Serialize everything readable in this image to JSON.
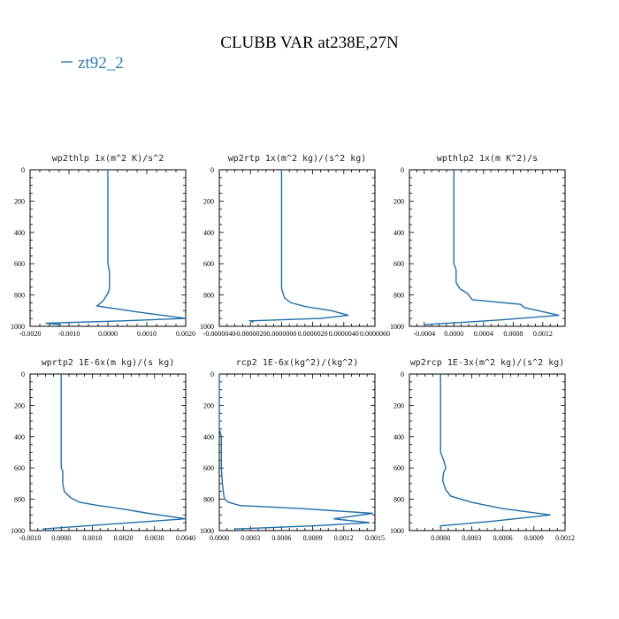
{
  "figure": {
    "title": "CLUBB VAR at238E,27N",
    "legend_label": "zt92_2",
    "colors": {
      "series": "#1f6fa8",
      "legend": "#2c7bb6"
    }
  },
  "chart_data": [
    {
      "type": "line",
      "title": "wp2thlp   1x(m^2 K)/s^2",
      "xlim": [
        -0.002,
        0.002
      ],
      "ylim": [
        1000,
        0
      ],
      "xticks": [
        -0.002,
        -0.001,
        0.0,
        0.001,
        0.002
      ],
      "xtick_labels": [
        "-0.0020",
        "-0.0010",
        "0.0000",
        "0.0010",
        "0.0020"
      ],
      "yticks": [
        0,
        200,
        400,
        600,
        800,
        1000
      ],
      "ytick_labels": [
        "0",
        "200",
        "400",
        "600",
        "800",
        "1000"
      ],
      "series": [
        {
          "name": "zt92_2",
          "x": [
            0.0,
            0.0,
            0.0,
            0.0,
            4e-05,
            4e-05,
            0.0,
            -0.00013,
            -0.00028,
            0.0008,
            0.002,
            0.0004,
            -0.0016,
            -0.0012
          ],
          "y": [
            0,
            200,
            400,
            600,
            650,
            760,
            790,
            840,
            870,
            910,
            950,
            965,
            980,
            990
          ]
        }
      ]
    },
    {
      "type": "line",
      "title": "wp2rtp   1x(m^2 kg)/(s^2 kg)",
      "xlim": [
        -4e-06,
        6e-06
      ],
      "ylim": [
        1000,
        0
      ],
      "xticks": [
        -4e-06,
        -2e-06,
        0.0,
        2e-06,
        4e-06,
        6e-06
      ],
      "xtick_labels": [
        "-0.0000040",
        "-0.0000020",
        "0.0000000",
        "0.0000020",
        "0.0000040",
        "0.0000060"
      ],
      "yticks": [
        0,
        200,
        400,
        600,
        800,
        1000
      ],
      "ytick_labels": [
        "0",
        "200",
        "400",
        "600",
        "800",
        "1000"
      ],
      "series": [
        {
          "name": "zt92_2",
          "x": [
            0.0,
            0.0,
            0.0,
            0.0,
            0.0,
            2e-07,
            6e-07,
            1.6e-06,
            3.2e-06,
            4.3e-06,
            2.5e-06,
            -2e-06,
            -1.8e-06
          ],
          "y": [
            0,
            200,
            400,
            600,
            760,
            820,
            850,
            875,
            900,
            930,
            950,
            965,
            975
          ]
        }
      ]
    },
    {
      "type": "line",
      "title": "wpthlp2   1x(m K^2)/s",
      "xlim": [
        -0.0006,
        0.0015
      ],
      "ylim": [
        1000,
        0
      ],
      "xticks": [
        -0.0004,
        0.0,
        0.0004,
        0.0008,
        0.0012
      ],
      "xtick_labels": [
        "-0.0004",
        "0.0000",
        "0.0004",
        "0.0008",
        "0.0012"
      ],
      "yticks": [
        0,
        200,
        400,
        600,
        800,
        1000
      ],
      "ytick_labels": [
        "0",
        "200",
        "400",
        "600",
        "800",
        "1000"
      ],
      "series": [
        {
          "name": "zt92_2",
          "x": [
            0.0,
            0.0,
            0.0,
            0.0,
            3e-05,
            3e-05,
            8e-05,
            0.00018,
            0.00025,
            0.0009,
            0.00095,
            0.00142,
            0.0006,
            -0.0004
          ],
          "y": [
            0,
            200,
            400,
            600,
            640,
            720,
            760,
            790,
            830,
            860,
            880,
            930,
            960,
            990
          ]
        }
      ]
    },
    {
      "type": "line",
      "title": "wprtp2   1E-6x(m kg)/(s kg)",
      "xlim": [
        -0.001,
        0.004
      ],
      "ylim": [
        1000,
        0
      ],
      "xticks": [
        -0.001,
        0.0,
        0.001,
        0.002,
        0.003,
        0.004
      ],
      "xtick_labels": [
        "-0.0010",
        "0.0000",
        "0.0010",
        "0.0020",
        "0.0030",
        "0.0040"
      ],
      "yticks": [
        0,
        200,
        400,
        600,
        800,
        1000
      ],
      "ytick_labels": [
        "0",
        "200",
        "400",
        "600",
        "800",
        "1000"
      ],
      "series": [
        {
          "name": "zt92_2",
          "x": [
            0.0,
            0.0,
            0.0,
            0.0,
            5e-05,
            5e-05,
            0.0001,
            0.0003,
            0.0006,
            0.0012,
            0.0019,
            0.0028,
            0.004,
            0.0015,
            -0.0006
          ],
          "y": [
            0,
            200,
            400,
            600,
            620,
            700,
            750,
            790,
            820,
            840,
            860,
            890,
            925,
            960,
            990
          ]
        }
      ]
    },
    {
      "type": "line",
      "title": "rcp2   1E-6x(kg^2)/(kg^2)",
      "xlim": [
        0.0,
        0.0015
      ],
      "ylim": [
        1000,
        0
      ],
      "xticks": [
        0.0,
        0.0003,
        0.0006,
        0.0009,
        0.0012,
        0.0015
      ],
      "xtick_labels": [
        "0.0000",
        "0.0003",
        "0.0006",
        "0.0009",
        "0.0012",
        "0.0015"
      ],
      "yticks": [
        0,
        200,
        400,
        600,
        800,
        1000
      ],
      "ytick_labels": [
        "0",
        "200",
        "400",
        "600",
        "800",
        "1000"
      ],
      "series": [
        {
          "name": "zt92_2",
          "x": [
            0.0,
            0.0,
            2e-05,
            2e-05,
            3e-05,
            4e-05,
            5e-05,
            9e-05,
            0.0002,
            0.0008,
            0.00148,
            0.0011,
            0.00145,
            0.0009,
            0.00015
          ],
          "y": [
            0,
            350,
            400,
            600,
            700,
            760,
            800,
            820,
            840,
            860,
            890,
            925,
            950,
            970,
            990
          ]
        }
      ]
    },
    {
      "type": "line",
      "title": "wp2rcp   1E-3x(m^2 kg)/(s^2 kg)",
      "xlim": [
        -0.0003,
        0.0012
      ],
      "ylim": [
        1000,
        0
      ],
      "xticks": [
        0.0,
        0.0003,
        0.0006,
        0.0009,
        0.0012
      ],
      "xtick_labels": [
        "0.0000",
        "0.0003",
        "0.0006",
        "0.0009",
        "0.0012"
      ],
      "yticks": [
        0,
        200,
        400,
        600,
        800,
        1000
      ],
      "ytick_labels": [
        "0",
        "200",
        "400",
        "600",
        "800",
        "1000"
      ],
      "series": [
        {
          "name": "zt92_2",
          "x": [
            0.0,
            0.0,
            0.0,
            0.0,
            3e-05,
            5e-05,
            3e-05,
            2e-05,
            5e-05,
            0.0001,
            0.0003,
            0.0006,
            0.00106,
            0.0005,
            0.0,
            0.0
          ],
          "y": [
            0,
            200,
            400,
            500,
            550,
            600,
            630,
            680,
            740,
            780,
            820,
            860,
            900,
            940,
            970,
            990
          ]
        }
      ]
    }
  ]
}
